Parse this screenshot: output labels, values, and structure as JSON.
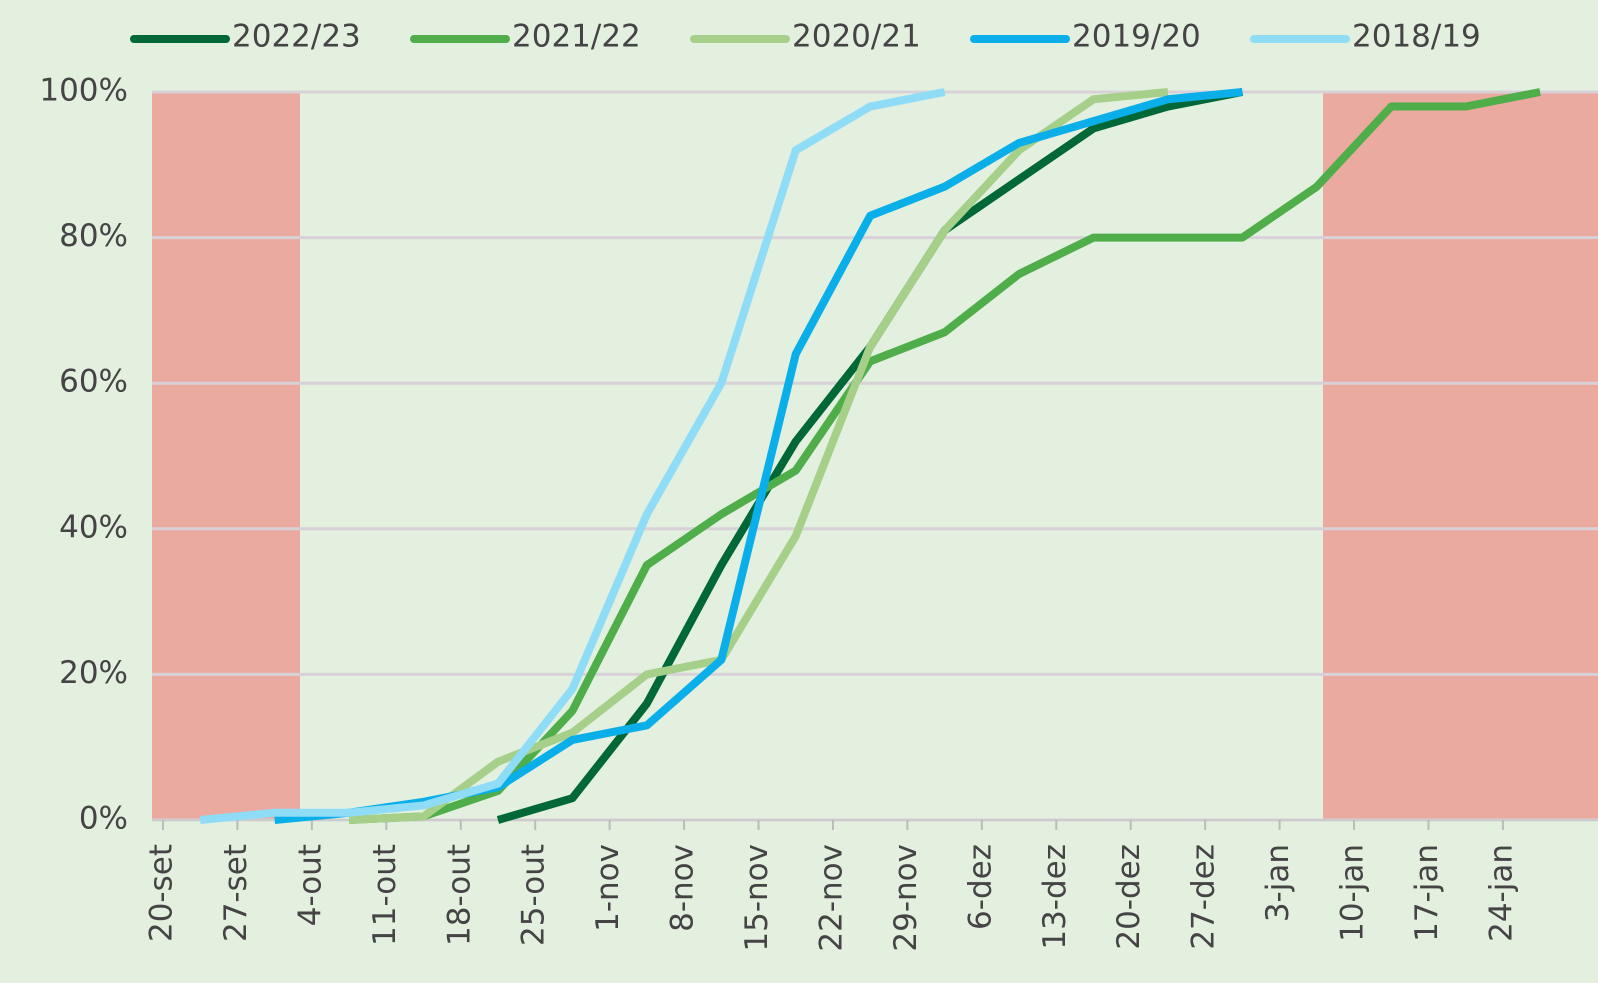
{
  "chart_data": {
    "type": "line",
    "categories": [
      "20-set",
      "27-set",
      "4-out",
      "11-out",
      "18-out",
      "25-out",
      "1-nov",
      "8-nov",
      "15-nov",
      "22-nov",
      "29-nov",
      "6-dez",
      "13-dez",
      "20-dez",
      "27-dez",
      "3-jan",
      "10-jan",
      "17-jan",
      "24-jan"
    ],
    "series": [
      {
        "name": "2022/23",
        "color": "#006837",
        "values": [
          null,
          null,
          null,
          null,
          0,
          3,
          16,
          35,
          52,
          65,
          81,
          88,
          95,
          98,
          100,
          null,
          null,
          null,
          null
        ]
      },
      {
        "name": "2021/22",
        "color": "#4fae4a",
        "values": [
          null,
          null,
          0,
          0.5,
          4,
          15,
          35,
          42,
          48,
          63,
          67,
          75,
          80,
          80,
          80,
          87,
          98,
          98,
          100
        ]
      },
      {
        "name": "2020/21",
        "color": "#a6d08a",
        "values": [
          null,
          null,
          0,
          0.5,
          8,
          12,
          20,
          22,
          39,
          65,
          81,
          92,
          99,
          100,
          null,
          null,
          null,
          null,
          null
        ]
      },
      {
        "name": "2019/20",
        "color": "#0aaee9",
        "values": [
          null,
          0,
          1,
          2.5,
          4.5,
          11,
          13,
          22,
          64,
          83,
          87,
          93,
          96,
          99,
          100,
          null,
          null,
          null,
          null
        ]
      },
      {
        "name": "2018/19",
        "color": "#8fdcf7",
        "values": [
          0,
          1,
          1,
          2,
          5,
          18,
          42,
          60,
          92,
          98,
          100,
          null,
          null,
          null,
          null,
          null,
          null,
          null,
          null
        ]
      }
    ],
    "ylim": [
      0,
      100
    ],
    "yticks": [
      {
        "value": 0,
        "label": "0%"
      },
      {
        "value": 20,
        "label": "20%"
      },
      {
        "value": 40,
        "label": "40%"
      },
      {
        "value": 60,
        "label": "60%"
      },
      {
        "value": 80,
        "label": "80%"
      },
      {
        "value": 100,
        "label": "100%"
      }
    ],
    "grid": true,
    "legend": "top"
  }
}
